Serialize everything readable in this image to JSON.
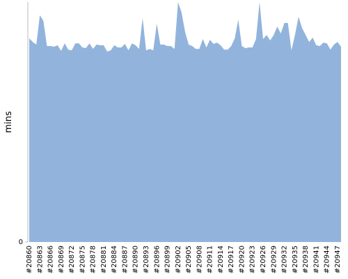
{
  "chart_data": {
    "type": "area",
    "y_label": "mins",
    "color": "#92b4dc",
    "ylim": [
      0,
      100
    ],
    "yticks": [
      0
    ],
    "categories": [
      "#20860",
      null,
      null,
      "#20863",
      null,
      null,
      "#20866",
      null,
      null,
      "#20869",
      null,
      null,
      "#20872",
      null,
      null,
      "#20875",
      null,
      null,
      "#20878",
      null,
      null,
      "#20881",
      null,
      null,
      "#20884",
      null,
      null,
      "#20887",
      null,
      null,
      "#20890",
      null,
      null,
      "#20893",
      null,
      null,
      "#20896",
      null,
      null,
      "#20899",
      null,
      null,
      "#20902",
      null,
      null,
      "#20905",
      null,
      null,
      "#20908",
      null,
      null,
      "#20911",
      null,
      null,
      "#20914",
      null,
      null,
      "#20917",
      null,
      null,
      "#20920",
      null,
      null,
      "#20923",
      null,
      null,
      "#20926",
      null,
      null,
      "#20929",
      null,
      null,
      "#20932",
      null,
      null,
      "#20935",
      null,
      null,
      "#20938",
      null,
      null,
      "#20941",
      null,
      null,
      "#20944",
      null,
      null,
      "#20947",
      null
    ],
    "values": [
      84.9,
      83.4,
      82.3,
      94.5,
      92.2,
      81.7,
      81.7,
      81.4,
      82.0,
      79.7,
      82.8,
      80.2,
      79.9,
      82.8,
      82.8,
      81.1,
      80.8,
      82.8,
      80.5,
      82.3,
      82.0,
      82.0,
      79.4,
      79.9,
      82.0,
      81.1,
      81.1,
      82.6,
      79.9,
      82.8,
      82.0,
      80.5,
      93.3,
      79.9,
      80.5,
      79.9,
      91.0,
      82.3,
      82.3,
      81.7,
      81.7,
      80.5,
      100,
      95.6,
      87.5,
      82.3,
      81.7,
      80.5,
      80.5,
      84.6,
      81.1,
      84.3,
      82.6,
      83.1,
      82.0,
      80.2,
      80.2,
      81.7,
      84.9,
      92.7,
      81.7,
      80.8,
      81.1,
      81.1,
      84.6,
      100,
      84.6,
      86.3,
      84.0,
      86.3,
      89.8,
      86.9,
      91.3,
      91.3,
      79.9,
      86.3,
      93.9,
      89.2,
      86.3,
      83.4,
      85.2,
      82.0,
      81.7,
      83.1,
      82.8,
      80.2,
      82.3,
      83.4,
      81.4
    ]
  }
}
